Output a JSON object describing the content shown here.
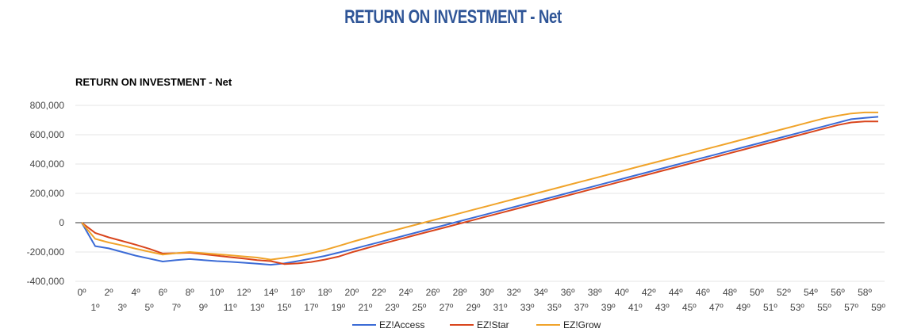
{
  "page_title": "RETURN ON INVESTMENT - Net",
  "chart_data": {
    "type": "line",
    "title": "RETURN ON INVESTMENT - Net",
    "xlabel": "",
    "ylabel": "",
    "x": [
      "0º",
      "1º",
      "2º",
      "3º",
      "4º",
      "5º",
      "6º",
      "7º",
      "8º",
      "9º",
      "10º",
      "11º",
      "12º",
      "13º",
      "14º",
      "15º",
      "16º",
      "17º",
      "18º",
      "19º",
      "20º",
      "21º",
      "22º",
      "23º",
      "24º",
      "25º",
      "26º",
      "27º",
      "28º",
      "29º",
      "30º",
      "31º",
      "32º",
      "33º",
      "34º",
      "35º",
      "36º",
      "37º",
      "38º",
      "39º",
      "40º",
      "41º",
      "42º",
      "43º",
      "44º",
      "45º",
      "46º",
      "47º",
      "48º",
      "49º",
      "50º",
      "51º",
      "52º",
      "53º",
      "54º",
      "55º",
      "56º",
      "57º",
      "58º",
      "59º"
    ],
    "y_ticks": [
      "800,000",
      "600,000",
      "400,000",
      "200,000",
      "0",
      "-200,000",
      "-400,000"
    ],
    "ylim": [
      -400000,
      800000
    ],
    "grid": true,
    "legend_position": "bottom",
    "series": [
      {
        "name": "EZ!Access",
        "color": "#3b6bd6",
        "values": [
          0,
          -160000,
          -175000,
          -200000,
          -225000,
          -245000,
          -265000,
          -255000,
          -248000,
          -255000,
          -262000,
          -267000,
          -273000,
          -280000,
          -287000,
          -278000,
          -262000,
          -245000,
          -227000,
          -205000,
          -182000,
          -158000,
          -134000,
          -110000,
          -86000,
          -62000,
          -38000,
          -14000,
          10000,
          34000,
          58000,
          82000,
          106000,
          130000,
          154000,
          178000,
          202000,
          226000,
          250000,
          274000,
          298000,
          322000,
          346000,
          370000,
          394000,
          418000,
          442000,
          466000,
          490000,
          514000,
          538000,
          562000,
          586000,
          610000,
          634000,
          658000,
          682000,
          706000,
          715000,
          722000
        ]
      },
      {
        "name": "EZ!Star",
        "color": "#d9451c",
        "values": [
          0,
          -70000,
          -100000,
          -125000,
          -150000,
          -178000,
          -210000,
          -208000,
          -205000,
          -215000,
          -225000,
          -235000,
          -245000,
          -255000,
          -262000,
          -282000,
          -278000,
          -268000,
          -252000,
          -232000,
          -202000,
          -176000,
          -150000,
          -126000,
          -102000,
          -78000,
          -54000,
          -30000,
          -6000,
          18000,
          42000,
          66000,
          90000,
          114000,
          138000,
          162000,
          186000,
          210000,
          234000,
          258000,
          282000,
          306000,
          330000,
          354000,
          378000,
          402000,
          426000,
          450000,
          474000,
          498000,
          522000,
          546000,
          570000,
          594000,
          618000,
          642000,
          666000,
          684000,
          690000,
          690000
        ]
      },
      {
        "name": "EZ!Grow",
        "color": "#f0a32a",
        "values": [
          0,
          -110000,
          -135000,
          -155000,
          -178000,
          -198000,
          -218000,
          -208000,
          -200000,
          -208000,
          -215000,
          -222000,
          -230000,
          -238000,
          -252000,
          -240000,
          -226000,
          -208000,
          -186000,
          -160000,
          -132000,
          -106000,
          -80000,
          -56000,
          -32000,
          -8000,
          16000,
          40000,
          64000,
          88000,
          112000,
          136000,
          160000,
          184000,
          208000,
          232000,
          256000,
          280000,
          304000,
          328000,
          352000,
          376000,
          400000,
          424000,
          448000,
          472000,
          496000,
          520000,
          544000,
          568000,
          592000,
          616000,
          640000,
          664000,
          688000,
          712000,
          730000,
          745000,
          752000,
          752000
        ]
      }
    ]
  }
}
